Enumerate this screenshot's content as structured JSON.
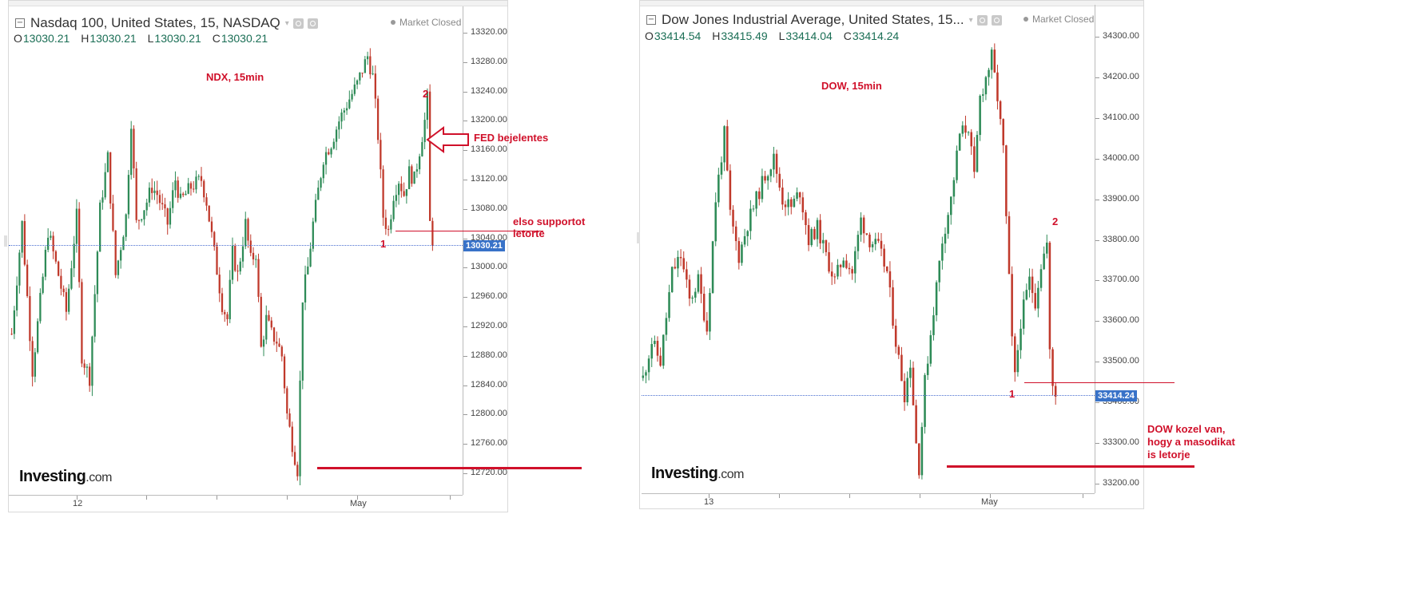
{
  "left": {
    "title": "Nasdaq 100, United States, 15, NASDAQ",
    "status": "Market Closed",
    "ohlc": [
      {
        "k": "O",
        "v": "13030.21"
      },
      {
        "k": "H",
        "v": "13030.21"
      },
      {
        "k": "L",
        "v": "13030.21"
      },
      {
        "k": "C",
        "v": "13030.21"
      }
    ],
    "price_label": "13030.21",
    "last_price": 13030.21,
    "y_ticks": [
      "13320.00",
      "13280.00",
      "13240.00",
      "13200.00",
      "13160.00",
      "13120.00",
      "13080.00",
      "13040.00",
      "13000.00",
      "12960.00",
      "12920.00",
      "12880.00",
      "12840.00",
      "12800.00",
      "12760.00",
      "12720.00"
    ],
    "x_labels": [
      "12",
      "May"
    ],
    "annotations": {
      "chart_label": "NDX, 15min",
      "fed": "FED bejelentes",
      "support_line1": "elso supportot",
      "support_line2": "letorte",
      "num1": "1",
      "num2": "2"
    },
    "series": {
      "start": 12910,
      "min": 12723,
      "max": 13290,
      "anchors": [
        [
          0,
          12910
        ],
        [
          4,
          13060
        ],
        [
          8,
          12860
        ],
        [
          14,
          13050
        ],
        [
          18,
          12990
        ],
        [
          21,
          12940
        ],
        [
          25,
          13070
        ],
        [
          27,
          12880
        ],
        [
          30,
          12850
        ],
        [
          34,
          13080
        ],
        [
          37,
          13150
        ],
        [
          40,
          12990
        ],
        [
          44,
          13070
        ],
        [
          46,
          13200
        ],
        [
          48,
          13060
        ],
        [
          52,
          13090
        ],
        [
          54,
          13110
        ],
        [
          56,
          13100
        ],
        [
          60,
          13060
        ],
        [
          63,
          13120
        ],
        [
          65,
          13090
        ],
        [
          69,
          13110
        ],
        [
          73,
          13120
        ],
        [
          75,
          13090
        ],
        [
          78,
          13020
        ],
        [
          81,
          12950
        ],
        [
          83,
          12930
        ],
        [
          85,
          13020
        ],
        [
          87,
          12990
        ],
        [
          90,
          13060
        ],
        [
          92,
          13010
        ],
        [
          94,
          13020
        ],
        [
          96,
          12890
        ],
        [
          98,
          12930
        ],
        [
          100,
          12910
        ],
        [
          102,
          12900
        ],
        [
          104,
          12880
        ],
        [
          106,
          12800
        ],
        [
          108,
          12760
        ],
        [
          110,
          12725
        ],
        [
          112,
          12960
        ],
        [
          114,
          13000
        ],
        [
          116,
          13060
        ],
        [
          120,
          13150
        ],
        [
          123,
          13170
        ],
        [
          126,
          13200
        ],
        [
          130,
          13230
        ],
        [
          133,
          13250
        ],
        [
          135,
          13270
        ],
        [
          137,
          13288
        ],
        [
          139,
          13260
        ],
        [
          141,
          13180
        ],
        [
          143,
          13070
        ],
        [
          145,
          13050
        ],
        [
          147,
          13100
        ],
        [
          149,
          13120
        ],
        [
          151,
          13100
        ],
        [
          153,
          13130
        ],
        [
          155,
          13120
        ],
        [
          157,
          13160
        ],
        [
          159,
          13200
        ],
        [
          160,
          13230
        ],
        [
          161,
          13060
        ],
        [
          162,
          13030
        ]
      ]
    }
  },
  "right": {
    "title": "Dow Jones Industrial Average, United States, 15...",
    "status": "Market Closed",
    "ohlc": [
      {
        "k": "O",
        "v": "33414.54"
      },
      {
        "k": "H",
        "v": "33415.49"
      },
      {
        "k": "L",
        "v": "33414.04"
      },
      {
        "k": "C",
        "v": "33414.24"
      }
    ],
    "price_label": "33414.24",
    "last_price": 33414.24,
    "y_ticks": [
      "34300.00",
      "34200.00",
      "34100.00",
      "34000.00",
      "33900.00",
      "33800.00",
      "33700.00",
      "33600.00",
      "33500.00",
      "33400.00",
      "33300.00",
      "33200.00"
    ],
    "x_labels": [
      "13",
      "May"
    ],
    "annotations": {
      "chart_label": "DOW, 15min",
      "note_line1": "DOW kozel van,",
      "note_line2": "hogy a masodikat",
      "note_line3": "is letorje",
      "num1": "1",
      "num2": "2"
    },
    "series": {
      "start": 33460,
      "min": 33230,
      "max": 34260,
      "anchors": [
        [
          0,
          33460
        ],
        [
          3,
          33550
        ],
        [
          6,
          33500
        ],
        [
          10,
          33720
        ],
        [
          13,
          33760
        ],
        [
          16,
          33650
        ],
        [
          19,
          33700
        ],
        [
          22,
          33580
        ],
        [
          25,
          33900
        ],
        [
          28,
          34060
        ],
        [
          30,
          33860
        ],
        [
          33,
          33760
        ],
        [
          36,
          33840
        ],
        [
          39,
          33900
        ],
        [
          42,
          33960
        ],
        [
          45,
          34000
        ],
        [
          48,
          33900
        ],
        [
          51,
          33880
        ],
        [
          54,
          33920
        ],
        [
          57,
          33800
        ],
        [
          60,
          33830
        ],
        [
          63,
          33760
        ],
        [
          66,
          33700
        ],
        [
          69,
          33760
        ],
        [
          72,
          33720
        ],
        [
          75,
          33850
        ],
        [
          78,
          33800
        ],
        [
          81,
          33780
        ],
        [
          84,
          33720
        ],
        [
          87,
          33550
        ],
        [
          90,
          33420
        ],
        [
          92,
          33500
        ],
        [
          94,
          33300
        ],
        [
          95,
          33240
        ],
        [
          97,
          33450
        ],
        [
          100,
          33630
        ],
        [
          103,
          33800
        ],
        [
          106,
          33900
        ],
        [
          109,
          34060
        ],
        [
          112,
          34080
        ],
        [
          114,
          33950
        ],
        [
          116,
          34150
        ],
        [
          118,
          34200
        ],
        [
          120,
          34250
        ],
        [
          122,
          34150
        ],
        [
          124,
          34020
        ],
        [
          125,
          33850
        ],
        [
          127,
          33550
        ],
        [
          128,
          33460
        ],
        [
          130,
          33600
        ],
        [
          133,
          33700
        ],
        [
          135,
          33650
        ],
        [
          137,
          33740
        ],
        [
          139,
          33790
        ],
        [
          140,
          33520
        ],
        [
          141,
          33440
        ],
        [
          142,
          33414
        ]
      ]
    }
  },
  "logo": {
    "brand": "Investing",
    "suffix": ".com"
  },
  "colors": {
    "up": "#2e8b57",
    "down": "#c0392b",
    "annotation": "#d0102a",
    "price_tag": "#3872c8"
  }
}
